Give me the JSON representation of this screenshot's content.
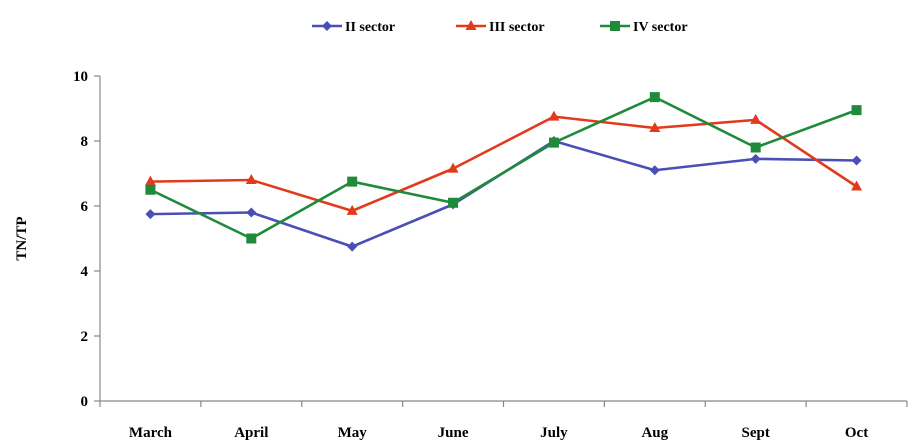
{
  "chart_data": {
    "type": "line",
    "categories": [
      "March",
      "April",
      "May",
      "June",
      "July",
      "Aug",
      "Sept",
      "Oct"
    ],
    "ylabel": "TN/TP",
    "xlabel": "",
    "ylim": [
      0,
      10
    ],
    "yticks": [
      0,
      2,
      4,
      6,
      8,
      10
    ],
    "grid": false,
    "legend_position": "top-center",
    "series": [
      {
        "name": "II sector",
        "color": "#4a4fb5",
        "marker": "diamond",
        "values": [
          5.75,
          5.8,
          4.75,
          6.05,
          8.0,
          7.1,
          7.45,
          7.4
        ]
      },
      {
        "name": "III sector",
        "color": "#e23a1c",
        "marker": "triangle",
        "values": [
          6.75,
          6.8,
          5.85,
          7.15,
          8.75,
          8.4,
          8.65,
          6.6
        ]
      },
      {
        "name": "IV sector",
        "color": "#1f8a3a",
        "marker": "square",
        "values": [
          6.5,
          5.0,
          6.75,
          6.1,
          7.95,
          9.35,
          7.8,
          8.95
        ]
      }
    ]
  }
}
